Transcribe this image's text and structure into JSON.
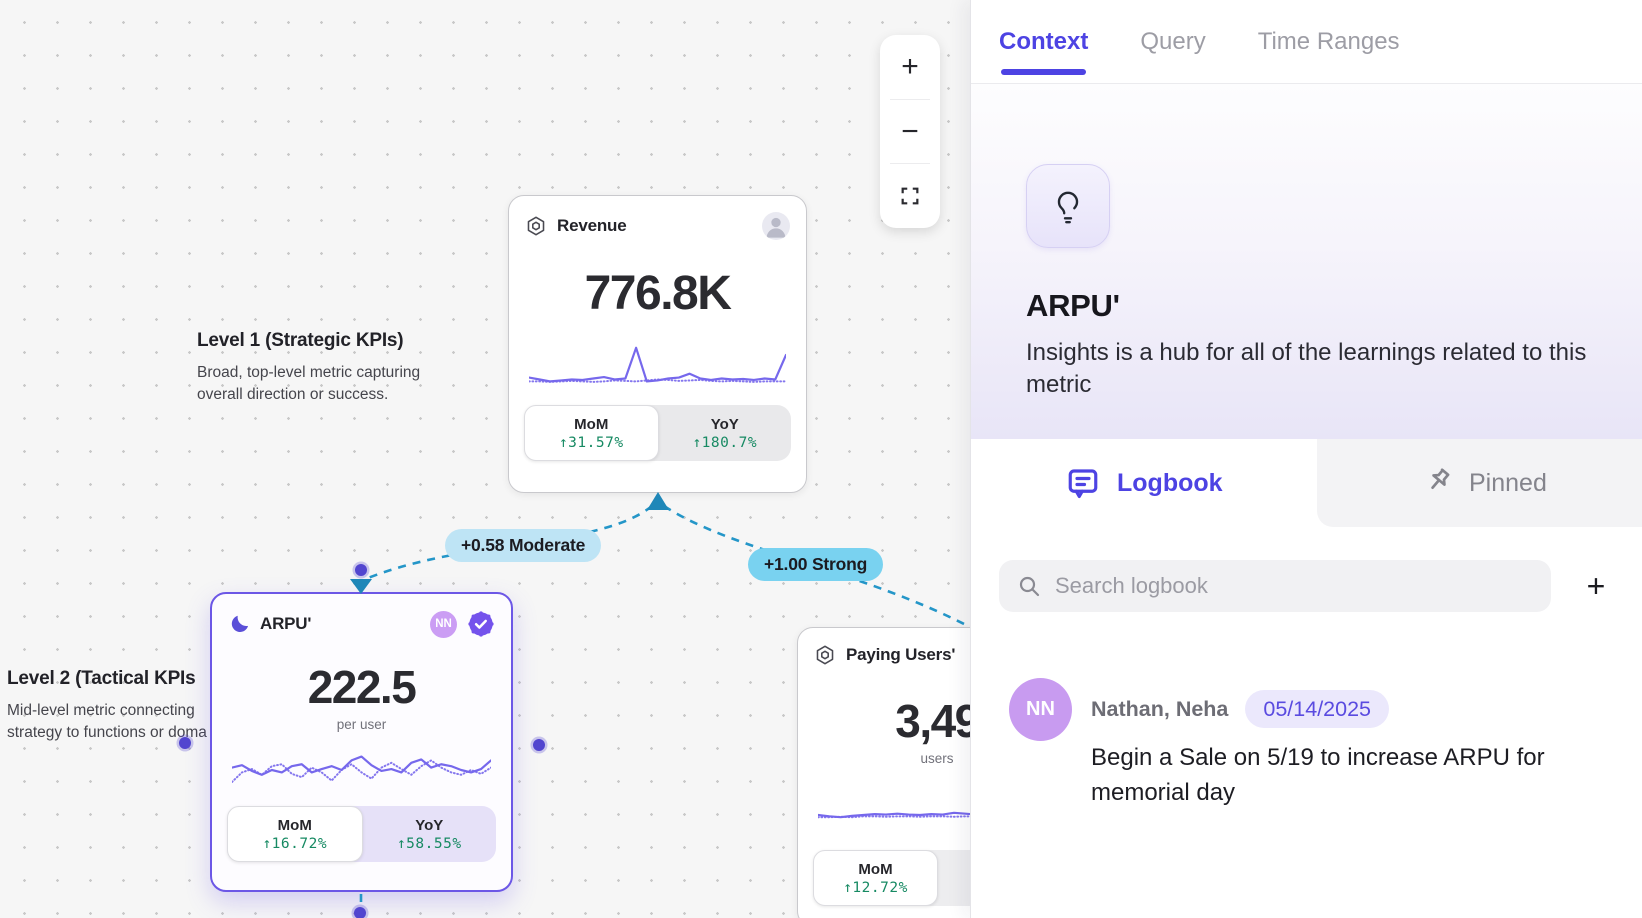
{
  "colors": {
    "accent_indigo": "#4d43e3",
    "card_purple": "#6c57e6",
    "spark_purple": "#7668ec",
    "positive_green": "#178a63",
    "edge_blue": "#2496c8",
    "pill_moderate_bg": "#bee4f5",
    "pill_strong_bg": "#79d2f0",
    "date_badge_bg": "#ebe8fc",
    "avatar_purple": "#c89bf0"
  },
  "canvas": {
    "zoom_toolbar": {
      "zoom_in": "+",
      "zoom_out": "−"
    },
    "levels": [
      {
        "title": "Level 1 (Strategic KPIs)",
        "description": "Broad, top-level metric capturing overall direction or success."
      },
      {
        "title": "Level 2 (Tactical KPIs",
        "description": "Mid-level metric connecting strategy to functions or doma"
      }
    ],
    "edges": [
      {
        "label": "+0.58 Moderate"
      },
      {
        "label": "+1.00 Strong"
      }
    ],
    "cards": {
      "revenue": {
        "title": "Revenue",
        "value": "776.8K",
        "mom_label": "MoM",
        "mom_value": "31.57%",
        "yoy_label": "YoY",
        "yoy_value": "180.7%",
        "sparkline": {
          "solid": [
            0.72,
            0.76,
            0.8,
            0.78,
            0.76,
            0.77,
            0.74,
            0.71,
            0.76,
            0.74,
            0.1,
            0.8,
            0.78,
            0.74,
            0.72,
            0.64,
            0.74,
            0.77,
            0.74,
            0.76,
            0.75,
            0.77,
            0.74,
            0.76,
            0.25
          ],
          "dotted": [
            0.8,
            0.8,
            0.81,
            0.8,
            0.79,
            0.8,
            0.81,
            0.8,
            0.78,
            0.79,
            0.8,
            0.78,
            0.76,
            0.77,
            0.79,
            0.78,
            0.77,
            0.79,
            0.8,
            0.79,
            0.8,
            0.81,
            0.8,
            0.8,
            0.8
          ]
        }
      },
      "arpu": {
        "title": "ARPU'",
        "value": "222.5",
        "unit": "per user",
        "badge": "NN",
        "mom_label": "MoM",
        "mom_value": "16.72%",
        "yoy_label": "YoY",
        "yoy_value": "58.55%",
        "sparkline": {
          "solid": [
            0.45,
            0.4,
            0.52,
            0.6,
            0.5,
            0.55,
            0.42,
            0.38,
            0.55,
            0.48,
            0.42,
            0.5,
            0.3,
            0.22,
            0.4,
            0.52,
            0.48,
            0.55,
            0.35,
            0.28,
            0.45,
            0.38,
            0.42,
            0.5,
            0.55,
            0.48,
            0.3
          ],
          "dotted": [
            0.75,
            0.55,
            0.48,
            0.6,
            0.42,
            0.38,
            0.58,
            0.65,
            0.45,
            0.55,
            0.72,
            0.5,
            0.38,
            0.55,
            0.68,
            0.45,
            0.35,
            0.48,
            0.6,
            0.42,
            0.3,
            0.45,
            0.55,
            0.6,
            0.5,
            0.58,
            0.45
          ]
        }
      },
      "paying": {
        "title": "Paying Users'",
        "value": "3,49",
        "unit": "users",
        "mom_label": "MoM",
        "mom_value": "12.72%",
        "sparkline": {
          "solid": [
            0.75,
            0.78,
            0.8,
            0.77,
            0.75,
            0.73,
            0.74,
            0.72,
            0.74,
            0.75,
            0.73,
            0.74,
            0.7,
            0.72,
            0.74,
            0.73,
            0.66,
            0.72,
            0.18,
            0.48,
            0.72,
            0.75
          ],
          "dotted": [
            0.8,
            0.8,
            0.79,
            0.8,
            0.78,
            0.78,
            0.79,
            0.78,
            0.78,
            0.79,
            0.78,
            0.78,
            0.79,
            0.78,
            0.78,
            0.79,
            0.78,
            0.79,
            0.79,
            0.79,
            0.79,
            0.79
          ]
        }
      }
    }
  },
  "panel": {
    "tabs": [
      {
        "label": "Context"
      },
      {
        "label": "Query"
      },
      {
        "label": "Time Ranges"
      }
    ],
    "hero": {
      "title": "ARPU'",
      "subtitle": "Insights is a hub for all of the learnings related to this metric"
    },
    "section_tabs": {
      "logbook": "Logbook",
      "pinned": "Pinned"
    },
    "search": {
      "placeholder": "Search logbook",
      "add": "+"
    },
    "entries": [
      {
        "avatar": "NN",
        "author": "Nathan, Neha",
        "date": "05/14/2025",
        "text": "Begin a Sale on 5/19 to increase ARPU for memorial day"
      }
    ]
  }
}
